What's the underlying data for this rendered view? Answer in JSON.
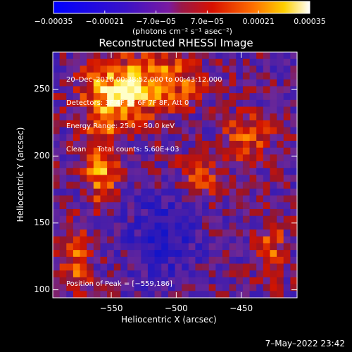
{
  "chart_data": {
    "type": "heatmap",
    "title": "Reconstructed RHESSI Image",
    "colorbar": {
      "units": "(photons cm⁻² s⁻¹ asec⁻²)",
      "range": [
        -0.00035,
        0.00035
      ],
      "tick_labels": [
        "−0.00035",
        "−0.00021",
        "−7.0e−05",
        "7.0e−05",
        "0.00021",
        "0.00035"
      ]
    },
    "xlabel": "Heliocentric X (arcsec)",
    "ylabel": "Heliocentric Y (arcsec)",
    "xlim": [
      -595,
      -407
    ],
    "ylim": [
      94,
      278
    ],
    "x_ticks": [
      {
        "value": -550,
        "label": "−550"
      },
      {
        "value": -500,
        "label": "−500"
      },
      {
        "value": -450,
        "label": "−450"
      }
    ],
    "y_ticks": [
      {
        "value": 100,
        "label": "100"
      },
      {
        "value": 150,
        "label": "150"
      },
      {
        "value": 200,
        "label": "200"
      },
      {
        "value": 250,
        "label": "250"
      }
    ],
    "annotations": [
      "20–Dec–2010 00:38:52.000 to 00:43:12.000",
      "Detectors: 3F 4F 5F 6F 7F 8F, Att 0",
      "Energy Range: 25.0 – 50.0 keV",
      "Clean     Total counts: 5.60E+03"
    ],
    "peak_label": "Position of Peak = [−559,186]",
    "peak": [
      -559,
      186
    ]
  },
  "footer": {
    "date_stamp": "7–May–2022 23:42"
  }
}
